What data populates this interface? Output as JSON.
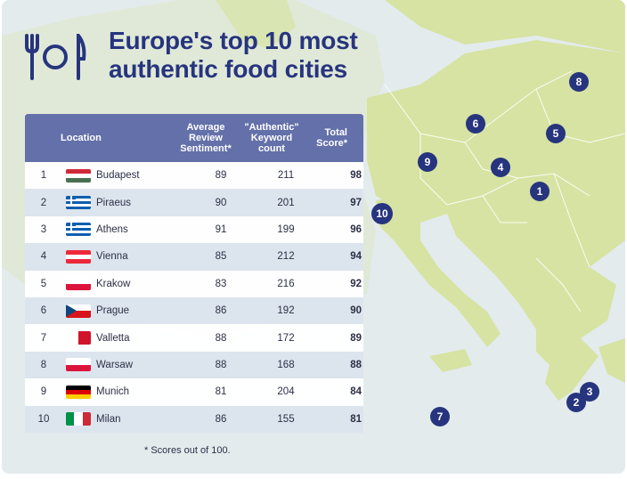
{
  "title": "Europe's top 10 most authentic food cities",
  "table": {
    "headers": {
      "location": "Location",
      "sentiment": [
        "Average",
        "Review",
        "Sentiment*"
      ],
      "keyword": [
        "\"Authentic\"",
        "Keyword",
        "count"
      ],
      "score": [
        "Total",
        "Score*"
      ]
    },
    "rows": [
      {
        "rank": "1",
        "city": "Budapest",
        "flag": "hungary",
        "sentiment": "89",
        "keyword": "211",
        "score": "98"
      },
      {
        "rank": "2",
        "city": "Piraeus",
        "flag": "greece",
        "sentiment": "90",
        "keyword": "201",
        "score": "97"
      },
      {
        "rank": "3",
        "city": "Athens",
        "flag": "greece",
        "sentiment": "91",
        "keyword": "199",
        "score": "96"
      },
      {
        "rank": "4",
        "city": "Vienna",
        "flag": "austria",
        "sentiment": "85",
        "keyword": "212",
        "score": "94"
      },
      {
        "rank": "5",
        "city": "Krakow",
        "flag": "poland",
        "sentiment": "83",
        "keyword": "216",
        "score": "92"
      },
      {
        "rank": "6",
        "city": "Prague",
        "flag": "czechia",
        "sentiment": "86",
        "keyword": "192",
        "score": "90"
      },
      {
        "rank": "7",
        "city": "Valletta",
        "flag": "malta",
        "sentiment": "88",
        "keyword": "172",
        "score": "89"
      },
      {
        "rank": "8",
        "city": "Warsaw",
        "flag": "poland",
        "sentiment": "88",
        "keyword": "168",
        "score": "88"
      },
      {
        "rank": "9",
        "city": "Munich",
        "flag": "germany",
        "sentiment": "81",
        "keyword": "204",
        "score": "84"
      },
      {
        "rank": "10",
        "city": "Milan",
        "flag": "italy",
        "sentiment": "86",
        "keyword": "155",
        "score": "81"
      }
    ]
  },
  "footnote": "* Scores out of 100.",
  "map_pins": [
    {
      "label": "1"
    },
    {
      "label": "2"
    },
    {
      "label": "3"
    },
    {
      "label": "4"
    },
    {
      "label": "5"
    },
    {
      "label": "6"
    },
    {
      "label": "7"
    },
    {
      "label": "8"
    },
    {
      "label": "9"
    },
    {
      "label": "10"
    }
  ],
  "colors": {
    "title": "#27347e",
    "header_bg": "#6370a9",
    "land": "#d6e3a2",
    "sea": "#e3ebed",
    "pin": "#27347e"
  }
}
